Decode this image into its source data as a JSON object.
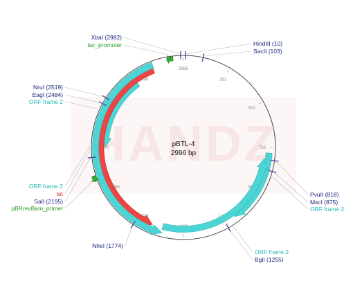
{
  "plasmid": {
    "name": "pBTL-4",
    "size_label": "2996 bp",
    "length": 2996
  },
  "watermark": "HANDZ",
  "colors": {
    "backbone": "#444444",
    "orf": "#4dd5d5",
    "orf_text": "#20b6b6",
    "tet": "#ee4444",
    "tet_text": "#dd2222",
    "promoter": "#33aa33",
    "promoter_text": "#229922",
    "enzyme_text": "#1a237e",
    "enzyme_mark": "#3a3a9a"
  },
  "ticks": [
    {
      "pos": 251,
      "label": "251"
    },
    {
      "pos": 500,
      "label": "500"
    },
    {
      "pos": 750,
      "label": "750"
    },
    {
      "pos": 999,
      "label": "999"
    },
    {
      "pos": 1249,
      "label": "1249"
    },
    {
      "pos": 1499,
      "label": "1499"
    },
    {
      "pos": 1748,
      "label": "1748"
    },
    {
      "pos": 1998,
      "label": "1998"
    },
    {
      "pos": 2247,
      "label": "2247"
    },
    {
      "pos": 2497,
      "label": "2497"
    },
    {
      "pos": 2746,
      "label": "2746"
    },
    {
      "pos": 2996,
      "label": "2996"
    }
  ],
  "features": [
    {
      "name": "orf_frame_2_inner_left",
      "type": "orf",
      "start": 2700,
      "end": 2250,
      "strand": -1
    },
    {
      "name": "tet",
      "type": "tet",
      "start": 2820,
      "end": 1680,
      "strand": -1
    },
    {
      "name": "orf_frame_2_outer_left",
      "type": "orf",
      "start": 2825,
      "end": 1615,
      "strand": -1
    },
    {
      "name": "orf_frame_2_right_outer",
      "type": "orf",
      "start": 780,
      "end": 1195,
      "strand": -1
    },
    {
      "name": "orf_frame_2_bottom",
      "type": "orf",
      "start": 1620,
      "end": 815,
      "strand": -1
    },
    {
      "name": "lac_promoter",
      "type": "promoter",
      "start": 2940,
      "end": 2905,
      "strand": -1
    },
    {
      "name": "pBRrevBam_primer",
      "type": "promoter",
      "start": 2100,
      "end": 2070,
      "strand": -1
    }
  ],
  "enzymes": [
    {
      "name": "XbaI",
      "pos": 2982
    },
    {
      "name": "HindIII",
      "pos": 10
    },
    {
      "name": "SacII",
      "pos": 103
    },
    {
      "name": "NruI",
      "pos": 2519
    },
    {
      "name": "EagI",
      "pos": 2484
    },
    {
      "name": "SalI",
      "pos": 2195
    },
    {
      "name": "PvuII",
      "pos": 818
    },
    {
      "name": "MscI",
      "pos": 875
    },
    {
      "name": "BglI",
      "pos": 1255
    },
    {
      "name": "NheI",
      "pos": 1774
    }
  ],
  "labels": [
    {
      "text": "XbaI (2982)",
      "color": "enzyme",
      "anchor": "end",
      "pos": 2982
    },
    {
      "text": "lac_promoter",
      "color": "promoter",
      "anchor": "end",
      "pos": 2925
    },
    {
      "text": "HindIII (10)",
      "color": "enzyme",
      "anchor": "start",
      "pos": 10
    },
    {
      "text": "SacII (103)",
      "color": "enzyme",
      "anchor": "start",
      "pos": 103
    },
    {
      "text": "NruI (2519)",
      "color": "enzyme",
      "anchor": "end",
      "pos": 2519
    },
    {
      "text": "EagI (2484)",
      "color": "enzyme",
      "anchor": "end",
      "pos": 2484
    },
    {
      "text": "ORF frame 2",
      "color": "orf",
      "anchor": "end",
      "pos": 2450
    },
    {
      "text": "ORF frame 2",
      "color": "orf",
      "anchor": "end",
      "pos": 2255
    },
    {
      "text": "tet",
      "color": "tet",
      "anchor": "end",
      "pos": 2235
    },
    {
      "text": "SalI (2195)",
      "color": "enzyme",
      "anchor": "end",
      "pos": 2195
    },
    {
      "text": "pBRrevBam_primer",
      "color": "promoter",
      "anchor": "end",
      "pos": 2085
    },
    {
      "text": "NheI (1774)",
      "color": "enzyme",
      "anchor": "end",
      "pos": 1774
    },
    {
      "text": "PvuII (818)",
      "color": "enzyme",
      "anchor": "start",
      "pos": 818
    },
    {
      "text": "MscI (875)",
      "color": "enzyme",
      "anchor": "start",
      "pos": 875
    },
    {
      "text": "ORF frame 2",
      "color": "orf",
      "anchor": "start",
      "pos": 900
    },
    {
      "text": "ORF frame 2",
      "color": "orf",
      "anchor": "start",
      "pos": 1230
    },
    {
      "text": "BglI (1255)",
      "color": "enzyme",
      "anchor": "start",
      "pos": 1255
    }
  ]
}
